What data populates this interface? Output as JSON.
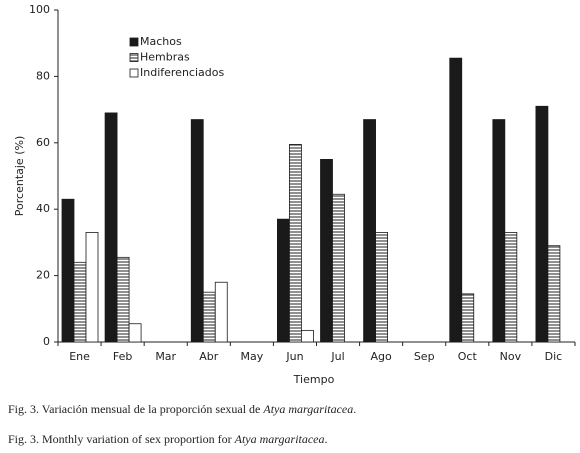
{
  "chart_data": {
    "type": "bar",
    "categories": [
      "Ene",
      "Feb",
      "Mar",
      "Abr",
      "May",
      "Jun",
      "Jul",
      "Ago",
      "Sep",
      "Oct",
      "Nov",
      "Dic"
    ],
    "series": [
      {
        "name": "Machos",
        "color": "#1a1a1a",
        "pattern": "solid",
        "values": [
          43,
          69,
          null,
          67,
          null,
          37,
          55,
          67,
          null,
          85.5,
          67,
          71
        ]
      },
      {
        "name": "Hembras",
        "color": "#1a1a1a",
        "pattern": "horizontal-lines",
        "values": [
          24,
          25.5,
          null,
          15,
          null,
          59.5,
          44.5,
          33,
          null,
          14.5,
          33,
          29
        ]
      },
      {
        "name": "Indiferenciados",
        "color": "#1a1a1a",
        "pattern": "outline",
        "values": [
          33,
          5.5,
          null,
          18,
          null,
          3.5,
          0,
          0,
          null,
          0,
          0,
          0
        ]
      }
    ],
    "ylim": [
      0,
      100
    ],
    "yticks": [
      0,
      20,
      40,
      60,
      80,
      100
    ],
    "ylabel": "Porcentaje (%)",
    "xlabel": "Tiempo"
  },
  "captions": [
    {
      "text": "Fig. 3. Variación mensual de la proporción sexual de ",
      "species": "Atya margaritacea",
      "end": "."
    },
    {
      "text": "Fig. 3. Monthly variation of sex proportion for ",
      "species": "Atya margaritacea",
      "end": "."
    }
  ]
}
